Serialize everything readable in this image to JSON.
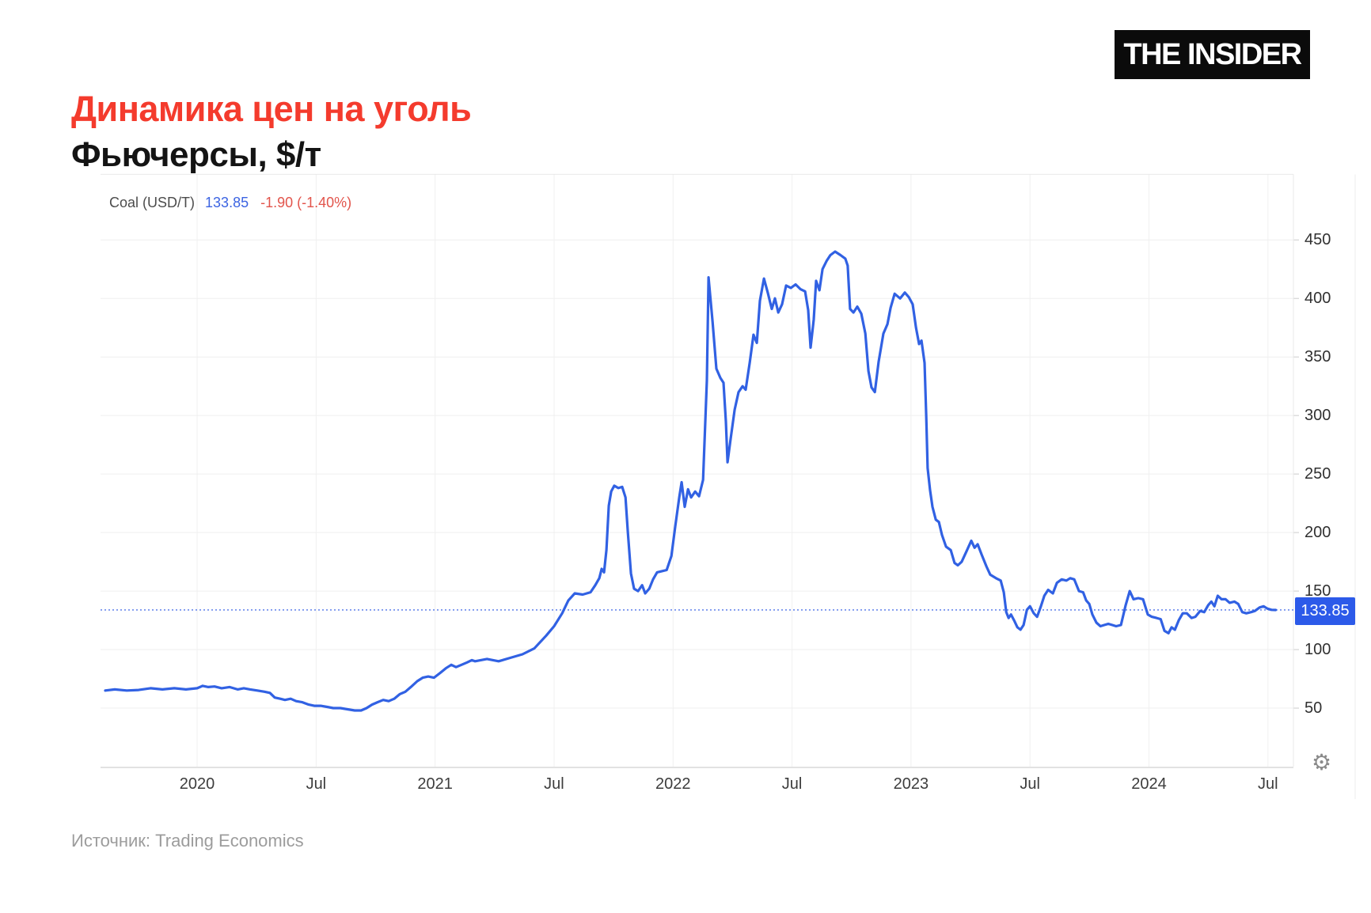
{
  "header": {
    "title": "Динамика цен на уголь",
    "subtitle": "Фьючерсы, $/т",
    "logo": "THE INSIDER"
  },
  "legend": {
    "instrument": "Coal (USD/T)",
    "last_price": "133.85",
    "change": "-1.90 (-1.40%)"
  },
  "price_badge": "133.85",
  "source": "Источник: Trading Economics",
  "colors": {
    "title_red": "#f43b2d",
    "line_blue": "#3161e3",
    "badge_blue": "#2c5ae9",
    "dotted_blue": "#4f74e8",
    "legend_red": "#e2544b",
    "grid": "#efefef",
    "axis_line": "#d8d8d8",
    "border": "#e9e9e9"
  },
  "chart_data": {
    "type": "line",
    "title": "Coal (USD/T)",
    "unit": "USD/T",
    "last_value": 133.85,
    "change": -1.9,
    "change_pct": "-1.40%",
    "reference_line": 133.85,
    "grid": true,
    "legend_position": "top-left",
    "x_domain": [
      2019.594,
      2024.607
    ],
    "y_domain": [
      0,
      506
    ],
    "y_ticks": [
      50,
      100,
      150,
      200,
      250,
      300,
      350,
      400,
      450
    ],
    "x_ticks": [
      {
        "t": 2020.0,
        "label": "2020"
      },
      {
        "t": 2020.5,
        "label": "Jul"
      },
      {
        "t": 2021.0,
        "label": "2021"
      },
      {
        "t": 2021.5,
        "label": "Jul"
      },
      {
        "t": 2022.0,
        "label": "2022"
      },
      {
        "t": 2022.5,
        "label": "Jul"
      },
      {
        "t": 2023.0,
        "label": "2023"
      },
      {
        "t": 2023.5,
        "label": "Jul"
      },
      {
        "t": 2024.0,
        "label": "2024"
      },
      {
        "t": 2024.5,
        "label": "Jul"
      }
    ],
    "series": [
      {
        "name": "Coal (USD/T)",
        "points": [
          [
            2019.614,
            65
          ],
          [
            2019.654,
            66
          ],
          [
            2019.704,
            65
          ],
          [
            2019.754,
            65.5
          ],
          [
            2019.804,
            67
          ],
          [
            2019.854,
            66
          ],
          [
            2019.904,
            67
          ],
          [
            2019.953,
            66
          ],
          [
            2020.0,
            67
          ],
          [
            2020.023,
            69
          ],
          [
            2020.047,
            68
          ],
          [
            2020.073,
            68.5
          ],
          [
            2020.103,
            67
          ],
          [
            2020.136,
            68
          ],
          [
            2020.17,
            66
          ],
          [
            2020.196,
            67
          ],
          [
            2020.223,
            66
          ],
          [
            2020.253,
            65
          ],
          [
            2020.283,
            64
          ],
          [
            2020.306,
            63
          ],
          [
            2020.326,
            59
          ],
          [
            2020.349,
            58
          ],
          [
            2020.369,
            57
          ],
          [
            2020.393,
            58
          ],
          [
            2020.416,
            56
          ],
          [
            2020.442,
            55
          ],
          [
            2020.469,
            53
          ],
          [
            2020.492,
            52
          ],
          [
            2020.519,
            52
          ],
          [
            2020.546,
            51
          ],
          [
            2020.572,
            50
          ],
          [
            2020.602,
            50
          ],
          [
            2020.632,
            49
          ],
          [
            2020.662,
            48
          ],
          [
            2020.689,
            48
          ],
          [
            2020.712,
            50
          ],
          [
            2020.735,
            53
          ],
          [
            2020.758,
            55
          ],
          [
            2020.782,
            57
          ],
          [
            2020.805,
            56
          ],
          [
            2020.828,
            58
          ],
          [
            2020.852,
            62
          ],
          [
            2020.875,
            64
          ],
          [
            2020.898,
            68
          ],
          [
            2020.925,
            73
          ],
          [
            2020.948,
            76
          ],
          [
            2020.971,
            77
          ],
          [
            2020.995,
            76
          ],
          [
            2021.021,
            80
          ],
          [
            2021.045,
            84
          ],
          [
            2021.068,
            87
          ],
          [
            2021.088,
            85
          ],
          [
            2021.111,
            87
          ],
          [
            2021.134,
            89
          ],
          [
            2021.154,
            91
          ],
          [
            2021.168,
            90
          ],
          [
            2021.218,
            92
          ],
          [
            2021.267,
            90
          ],
          [
            2021.317,
            93
          ],
          [
            2021.367,
            96
          ],
          [
            2021.417,
            101
          ],
          [
            2021.467,
            112
          ],
          [
            2021.5,
            120
          ],
          [
            2021.534,
            131
          ],
          [
            2021.56,
            142
          ],
          [
            2021.587,
            148
          ],
          [
            2021.62,
            147
          ],
          [
            2021.653,
            149
          ],
          [
            2021.673,
            155
          ],
          [
            2021.69,
            161
          ],
          [
            2021.7,
            169
          ],
          [
            2021.71,
            166
          ],
          [
            2021.72,
            185
          ],
          [
            2021.73,
            223
          ],
          [
            2021.74,
            235
          ],
          [
            2021.753,
            240
          ],
          [
            2021.77,
            238
          ],
          [
            2021.786,
            239
          ],
          [
            2021.8,
            230
          ],
          [
            2021.81,
            200
          ],
          [
            2021.823,
            165
          ],
          [
            2021.836,
            152
          ],
          [
            2021.853,
            150
          ],
          [
            2021.87,
            155
          ],
          [
            2021.883,
            148
          ],
          [
            2021.9,
            152
          ],
          [
            2021.916,
            160
          ],
          [
            2021.933,
            166
          ],
          [
            2021.953,
            167
          ],
          [
            2021.973,
            168
          ],
          [
            2021.993,
            180
          ],
          [
            2022.009,
            205
          ],
          [
            2022.026,
            230
          ],
          [
            2022.036,
            243
          ],
          [
            2022.049,
            222
          ],
          [
            2022.063,
            237
          ],
          [
            2022.076,
            230
          ],
          [
            2022.093,
            235
          ],
          [
            2022.109,
            231
          ],
          [
            2022.126,
            245
          ],
          [
            2022.142,
            330
          ],
          [
            2022.149,
            418
          ],
          [
            2022.166,
            380
          ],
          [
            2022.182,
            340
          ],
          [
            2022.199,
            332
          ],
          [
            2022.212,
            328
          ],
          [
            2022.222,
            295
          ],
          [
            2022.229,
            260
          ],
          [
            2022.242,
            280
          ],
          [
            2022.259,
            305
          ],
          [
            2022.275,
            320
          ],
          [
            2022.292,
            325
          ],
          [
            2022.305,
            322
          ],
          [
            2022.322,
            345
          ],
          [
            2022.338,
            369
          ],
          [
            2022.352,
            362
          ],
          [
            2022.365,
            398
          ],
          [
            2022.382,
            417
          ],
          [
            2022.398,
            405
          ],
          [
            2022.415,
            391
          ],
          [
            2022.428,
            400
          ],
          [
            2022.442,
            388
          ],
          [
            2022.458,
            395
          ],
          [
            2022.475,
            411
          ],
          [
            2022.495,
            409
          ],
          [
            2022.515,
            412
          ],
          [
            2022.535,
            408
          ],
          [
            2022.555,
            406
          ],
          [
            2022.568,
            390
          ],
          [
            2022.578,
            358
          ],
          [
            2022.591,
            382
          ],
          [
            2022.601,
            415
          ],
          [
            2022.615,
            407
          ],
          [
            2022.628,
            425
          ],
          [
            2022.645,
            432
          ],
          [
            2022.661,
            437
          ],
          [
            2022.681,
            440
          ],
          [
            2022.704,
            437
          ],
          [
            2022.724,
            434
          ],
          [
            2022.734,
            428
          ],
          [
            2022.744,
            391
          ],
          [
            2022.758,
            388
          ],
          [
            2022.774,
            393
          ],
          [
            2022.791,
            387
          ],
          [
            2022.808,
            370
          ],
          [
            2022.821,
            338
          ],
          [
            2022.834,
            324
          ],
          [
            2022.848,
            320
          ],
          [
            2022.864,
            346
          ],
          [
            2022.884,
            370
          ],
          [
            2022.901,
            378
          ],
          [
            2022.914,
            392
          ],
          [
            2022.931,
            404
          ],
          [
            2022.954,
            400
          ],
          [
            2022.974,
            405
          ],
          [
            2022.991,
            401
          ],
          [
            2023.007,
            395
          ],
          [
            2023.021,
            375
          ],
          [
            2023.034,
            361
          ],
          [
            2023.044,
            364
          ],
          [
            2023.057,
            345
          ],
          [
            2023.064,
            300
          ],
          [
            2023.07,
            255
          ],
          [
            2023.08,
            236
          ],
          [
            2023.09,
            222
          ],
          [
            2023.104,
            211
          ],
          [
            2023.117,
            209
          ],
          [
            2023.13,
            198
          ],
          [
            2023.147,
            188
          ],
          [
            2023.167,
            185
          ],
          [
            2023.183,
            174
          ],
          [
            2023.197,
            172
          ],
          [
            2023.213,
            175
          ],
          [
            2023.233,
            184
          ],
          [
            2023.253,
            193
          ],
          [
            2023.267,
            187
          ],
          [
            2023.28,
            190
          ],
          [
            2023.297,
            181
          ],
          [
            2023.317,
            171
          ],
          [
            2023.333,
            164
          ],
          [
            2023.357,
            161
          ],
          [
            2023.377,
            159
          ],
          [
            2023.39,
            149
          ],
          [
            2023.4,
            132
          ],
          [
            2023.41,
            127
          ],
          [
            2023.42,
            130
          ],
          [
            2023.433,
            125
          ],
          [
            2023.447,
            119
          ],
          [
            2023.46,
            117
          ],
          [
            2023.473,
            121
          ],
          [
            2023.487,
            134
          ],
          [
            2023.5,
            137
          ],
          [
            2023.516,
            131
          ],
          [
            2023.53,
            128
          ],
          [
            2023.546,
            137
          ],
          [
            2023.56,
            146
          ],
          [
            2023.576,
            151
          ],
          [
            2023.596,
            148
          ],
          [
            2023.613,
            157
          ],
          [
            2023.633,
            160
          ],
          [
            2023.653,
            159
          ],
          [
            2023.669,
            161
          ],
          [
            2023.686,
            160
          ],
          [
            2023.706,
            150
          ],
          [
            2023.723,
            149
          ],
          [
            2023.736,
            142
          ],
          [
            2023.749,
            139
          ],
          [
            2023.762,
            130
          ],
          [
            2023.779,
            123
          ],
          [
            2023.796,
            120
          ],
          [
            2023.812,
            121
          ],
          [
            2023.829,
            122
          ],
          [
            2023.846,
            121
          ],
          [
            2023.862,
            120
          ],
          [
            2023.882,
            121
          ],
          [
            2023.902,
            138
          ],
          [
            2023.919,
            150
          ],
          [
            2023.935,
            143
          ],
          [
            2023.955,
            144
          ],
          [
            2023.975,
            143
          ],
          [
            2023.995,
            130
          ],
          [
            2024.012,
            128
          ],
          [
            2024.032,
            127
          ],
          [
            2024.049,
            126
          ],
          [
            2024.065,
            116
          ],
          [
            2024.082,
            114
          ],
          [
            2024.095,
            119
          ],
          [
            2024.109,
            117
          ],
          [
            2024.125,
            125
          ],
          [
            2024.142,
            131
          ],
          [
            2024.159,
            131
          ],
          [
            2024.179,
            127
          ],
          [
            2024.195,
            128
          ],
          [
            2024.215,
            133
          ],
          [
            2024.232,
            132
          ],
          [
            2024.249,
            138
          ],
          [
            2024.262,
            141
          ],
          [
            2024.275,
            137
          ],
          [
            2024.289,
            146
          ],
          [
            2024.305,
            143
          ],
          [
            2024.322,
            143
          ],
          [
            2024.339,
            140
          ],
          [
            2024.359,
            141
          ],
          [
            2024.375,
            139
          ],
          [
            2024.392,
            132
          ],
          [
            2024.409,
            131
          ],
          [
            2024.429,
            132
          ],
          [
            2024.445,
            133
          ],
          [
            2024.465,
            136
          ],
          [
            2024.482,
            137
          ],
          [
            2024.498,
            135
          ],
          [
            2024.515,
            134
          ],
          [
            2024.532,
            133.85
          ]
        ]
      }
    ]
  }
}
